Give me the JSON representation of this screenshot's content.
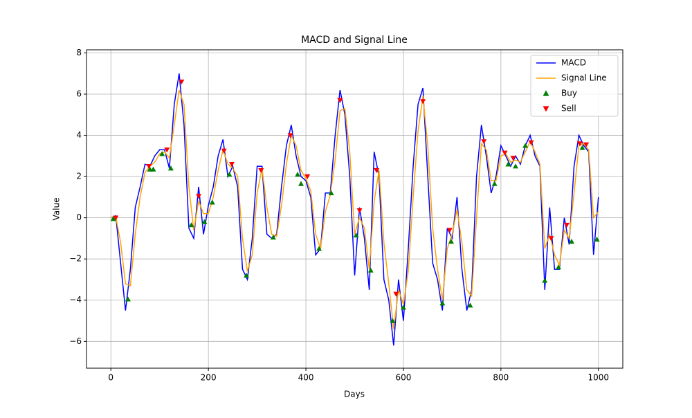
{
  "chart_data": {
    "type": "line",
    "title": "MACD and Signal Line",
    "xlabel": "Days",
    "ylabel": "Value",
    "xlim": [
      -50,
      1050
    ],
    "ylim": [
      -7.3,
      8.15
    ],
    "xticks": [
      0,
      200,
      400,
      600,
      800,
      1000
    ],
    "yticks": [
      {
        "value": -6,
        "label": "−6"
      },
      {
        "value": -4,
        "label": "−4"
      },
      {
        "value": -2,
        "label": "−2"
      },
      0,
      2,
      4,
      6,
      8
    ],
    "grid": true,
    "legend": "upper right",
    "series": [
      {
        "name": "MACD",
        "type": "line",
        "color": "#0000ff",
        "x": [
          0,
          10,
          20,
          30,
          40,
          50,
          60,
          70,
          80,
          90,
          100,
          110,
          120,
          130,
          140,
          150,
          160,
          170,
          180,
          190,
          200,
          210,
          220,
          230,
          240,
          250,
          260,
          270,
          280,
          290,
          300,
          310,
          320,
          330,
          340,
          350,
          360,
          370,
          380,
          390,
          400,
          410,
          420,
          430,
          440,
          450,
          460,
          470,
          480,
          490,
          500,
          510,
          520,
          530,
          540,
          550,
          560,
          570,
          580,
          590,
          600,
          610,
          620,
          630,
          640,
          650,
          660,
          670,
          680,
          690,
          700,
          710,
          720,
          730,
          740,
          750,
          760,
          770,
          780,
          790,
          800,
          810,
          820,
          830,
          840,
          850,
          860,
          870,
          880,
          890,
          900,
          910,
          920,
          930,
          940,
          950,
          960,
          970,
          980,
          990,
          1000
        ],
        "values": [
          0,
          0.1,
          -2.2,
          -4.5,
          -2.5,
          0.5,
          1.5,
          2.6,
          2.5,
          3.0,
          3.3,
          3.3,
          2.4,
          5.5,
          7.0,
          4.5,
          -0.5,
          -1.0,
          1.5,
          -0.8,
          0.6,
          1.5,
          3.0,
          3.8,
          2.0,
          2.5,
          1.5,
          -2.5,
          -3.0,
          -1.0,
          2.5,
          2.5,
          -0.8,
          -1.0,
          -0.8,
          1.5,
          3.5,
          4.5,
          3.0,
          2.0,
          1.8,
          1.0,
          -1.8,
          -1.5,
          1.2,
          1.2,
          4.0,
          6.2,
          5.0,
          2.0,
          -2.8,
          0.5,
          -1.0,
          -3.5,
          3.2,
          2.0,
          -3.0,
          -4.0,
          -6.2,
          -3.0,
          -5.0,
          -1.5,
          2.5,
          5.5,
          6.3,
          2.0,
          -2.2,
          -3.0,
          -4.5,
          -0.5,
          -1.0,
          1.0,
          -2.5,
          -4.5,
          -3.5,
          2.0,
          4.5,
          3.0,
          1.2,
          2.0,
          3.5,
          3.0,
          2.5,
          3.0,
          2.6,
          3.5,
          4.0,
          3.0,
          2.5,
          -3.5,
          0.5,
          -2.5,
          -2.5,
          0.0,
          -1.3,
          2.5,
          4.0,
          3.5,
          3.2,
          -1.8,
          1.0
        ]
      },
      {
        "name": "Signal Line",
        "type": "line",
        "color": "#ffa500",
        "x": [
          0,
          10,
          20,
          30,
          40,
          50,
          60,
          70,
          80,
          90,
          100,
          110,
          120,
          130,
          140,
          150,
          160,
          170,
          180,
          190,
          200,
          210,
          220,
          230,
          240,
          250,
          260,
          270,
          280,
          290,
          300,
          310,
          320,
          330,
          340,
          350,
          360,
          370,
          380,
          390,
          400,
          410,
          420,
          430,
          440,
          450,
          460,
          470,
          480,
          490,
          500,
          510,
          520,
          530,
          540,
          550,
          560,
          570,
          580,
          590,
          600,
          610,
          620,
          630,
          640,
          650,
          660,
          670,
          680,
          690,
          700,
          710,
          720,
          730,
          740,
          750,
          760,
          770,
          780,
          790,
          800,
          810,
          820,
          830,
          840,
          850,
          860,
          870,
          880,
          890,
          900,
          910,
          920,
          930,
          940,
          950,
          960,
          970,
          980,
          990,
          1000
        ],
        "values": [
          0,
          0.05,
          -1.2,
          -3.2,
          -3.3,
          -0.8,
          1.0,
          2.2,
          2.5,
          2.7,
          3.1,
          3.2,
          2.9,
          4.5,
          6.2,
          5.5,
          1.5,
          -0.6,
          0.8,
          0.2,
          0.2,
          1.0,
          2.3,
          3.3,
          2.6,
          2.4,
          2.0,
          -1.0,
          -2.6,
          -1.8,
          1.2,
          2.4,
          0.5,
          -0.8,
          -0.9,
          0.6,
          2.6,
          4.0,
          3.5,
          2.3,
          1.9,
          1.3,
          -0.8,
          -1.5,
          0.3,
          1.1,
          2.8,
          5.2,
          5.3,
          3.2,
          -0.8,
          0.0,
          -0.5,
          -2.5,
          0.8,
          2.3,
          -1.2,
          -3.2,
          -5.4,
          -3.5,
          -4.2,
          -2.6,
          1.0,
          4.2,
          5.9,
          3.5,
          -0.5,
          -2.5,
          -4.0,
          -1.5,
          -0.8,
          0.4,
          -1.2,
          -3.5,
          -3.8,
          0.0,
          3.6,
          3.3,
          1.8,
          1.8,
          3.0,
          3.1,
          2.7,
          2.8,
          2.7,
          3.2,
          3.7,
          3.2,
          2.6,
          -1.5,
          -0.8,
          -1.8,
          -2.3,
          -0.6,
          -1.0,
          1.2,
          3.5,
          3.6,
          3.3,
          0.0,
          0.3
        ]
      },
      {
        "name": "Buy",
        "type": "scatter",
        "marker": "^",
        "color": "#008000",
        "x": [
          5,
          35,
          80,
          87,
          105,
          123,
          165,
          192,
          208,
          243,
          278,
          333,
          383,
          390,
          427,
          452,
          503,
          533,
          578,
          600,
          680,
          698,
          737,
          787,
          815,
          830,
          850,
          890,
          918,
          945,
          967,
          997
        ],
        "values": [
          -0.05,
          -3.95,
          2.35,
          2.35,
          3.1,
          2.4,
          -0.35,
          -0.2,
          0.75,
          2.1,
          -2.8,
          -0.95,
          2.1,
          1.65,
          -1.5,
          1.2,
          -0.85,
          -2.55,
          -5.0,
          -4.35,
          -4.15,
          -1.15,
          -4.25,
          1.65,
          2.6,
          2.5,
          3.5,
          -3.05,
          -2.4,
          -1.15,
          3.4,
          -1.05
        ]
      },
      {
        "name": "Sell",
        "type": "scatter",
        "marker": "v",
        "color": "#ff0000",
        "x": [
          10,
          78,
          115,
          145,
          180,
          232,
          248,
          308,
          368,
          403,
          470,
          510,
          545,
          585,
          640,
          695,
          765,
          808,
          825,
          862,
          903,
          935,
          962,
          975
        ],
        "values": [
          0,
          2.5,
          3.3,
          6.6,
          1.05,
          3.25,
          2.6,
          2.3,
          4.0,
          2.0,
          5.7,
          0.35,
          2.3,
          -3.7,
          5.65,
          -0.6,
          3.7,
          3.15,
          2.9,
          3.65,
          -1.0,
          -0.35,
          3.6,
          3.55
        ]
      }
    ]
  }
}
